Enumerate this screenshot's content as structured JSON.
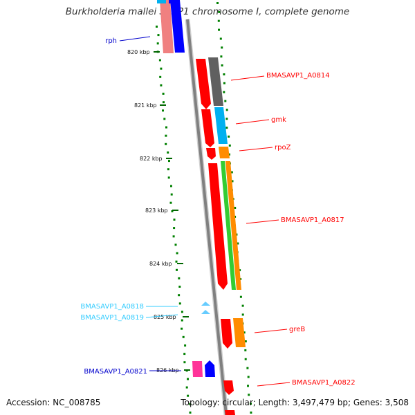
{
  "title": "Burkholderia mallei SAVP1 chromosome I, complete genome",
  "footer": {
    "accession": "Accession: NC_008785",
    "summary": "Topology: circular; Length: 3,497,479 bp; Genes: 3,508"
  },
  "ticks": [
    "820 kbp",
    "821 kbp",
    "822 kbp",
    "823 kbp",
    "824 kbp",
    "825 kbp",
    "826 kbp"
  ],
  "genes": [
    {
      "label": "rph",
      "color": "#0000ff"
    },
    {
      "label": "BMASAVP1_A0814",
      "color": "#ff0000"
    },
    {
      "label": "gmk",
      "color": "#ff0000"
    },
    {
      "label": "rpoZ",
      "color": "#ff0000"
    },
    {
      "label": "BMASAVP1_A0817",
      "color": "#ff0000"
    },
    {
      "label": "BMASAVP1_A0818",
      "color": "#33ccff"
    },
    {
      "label": "BMASAVP1_A0819",
      "color": "#33ccff"
    },
    {
      "label": "greB",
      "color": "#ff0000"
    },
    {
      "label": "BMASAVP1_A0821",
      "color": "#0000ff"
    },
    {
      "label": "BMASAVP1_A0822",
      "color": "#ff0000"
    }
  ],
  "colors": {
    "backbone": "#808080",
    "gc_skew": "#008000",
    "cds_red": "#ff0000",
    "cds_gray": "#606060",
    "cds_cyan": "#00b0f0",
    "cds_orange": "#ff8c00",
    "cds_green": "#33cc33",
    "cds_blue": "#0000ff",
    "cds_pink": "#ff3399",
    "cds_light": "#66ccff"
  }
}
